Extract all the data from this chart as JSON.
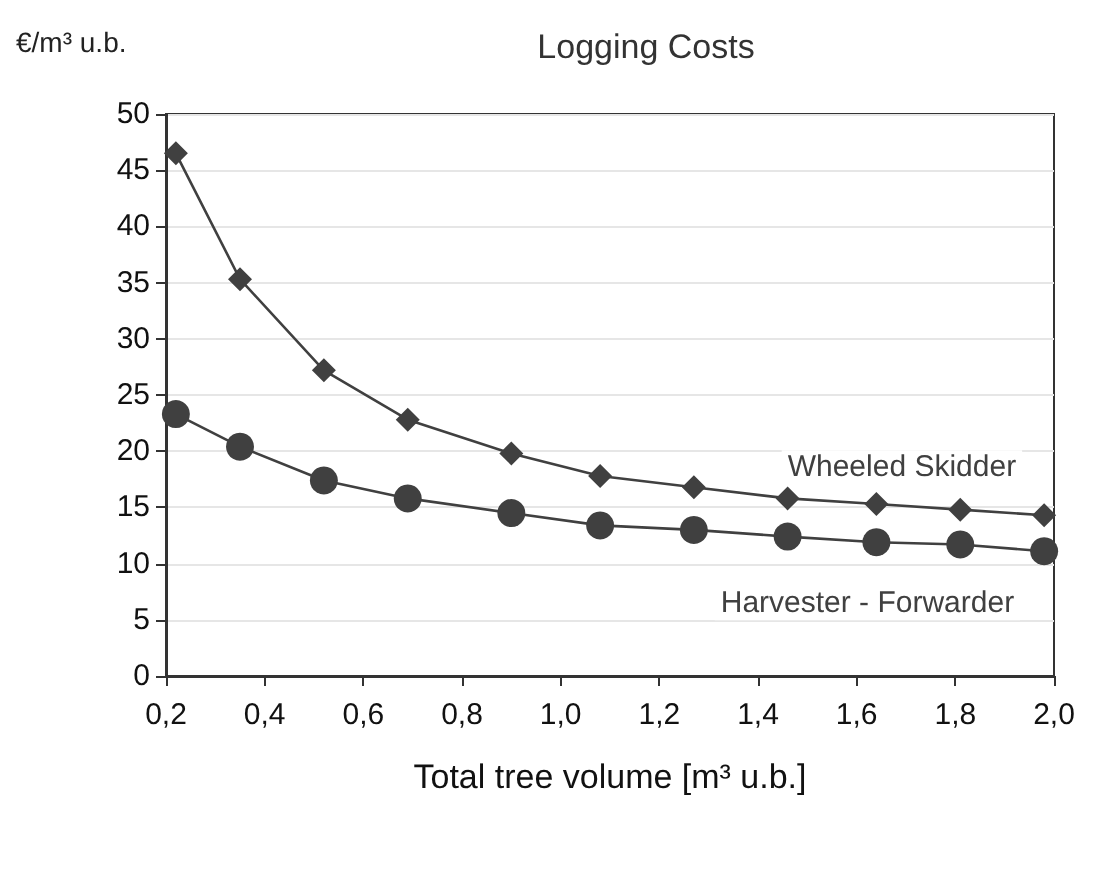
{
  "chart_data": {
    "type": "line",
    "title": "Logging Costs",
    "xlabel": "Total tree volume [m³ u.b.]",
    "ylabel": "€/m³ u.b.",
    "x": [
      0.22,
      0.35,
      0.52,
      0.69,
      0.9,
      1.08,
      1.27,
      1.46,
      1.64,
      1.81,
      1.98
    ],
    "series": [
      {
        "name": "Wheeled Skidder",
        "color": "#404040",
        "marker": "diamond",
        "values": [
          46.5,
          35.3,
          27.2,
          22.8,
          19.8,
          17.8,
          16.8,
          15.8,
          15.3,
          14.8,
          14.3
        ]
      },
      {
        "name": "Harvester - Forwarder",
        "color": "#404040",
        "marker": "circle",
        "values": [
          23.3,
          20.4,
          17.4,
          15.8,
          14.5,
          13.4,
          13.0,
          12.4,
          11.9,
          11.7,
          11.1
        ]
      }
    ],
    "xlim": [
      0.2,
      2.0
    ],
    "xticks": [
      {
        "value": 0.2,
        "label": "0,2"
      },
      {
        "value": 0.4,
        "label": "0,4"
      },
      {
        "value": 0.6,
        "label": "0,6"
      },
      {
        "value": 0.8,
        "label": "0,8"
      },
      {
        "value": 1.0,
        "label": "1,0"
      },
      {
        "value": 1.2,
        "label": "1,2"
      },
      {
        "value": 1.4,
        "label": "1,4"
      },
      {
        "value": 1.6,
        "label": "1,6"
      },
      {
        "value": 1.8,
        "label": "1,8"
      },
      {
        "value": 2.0,
        "label": "2,0"
      }
    ],
    "ylim": [
      0,
      50
    ],
    "yticks": [
      0,
      5,
      10,
      15,
      20,
      25,
      30,
      35,
      40,
      45,
      50
    ],
    "grid": "y",
    "legend": false
  }
}
